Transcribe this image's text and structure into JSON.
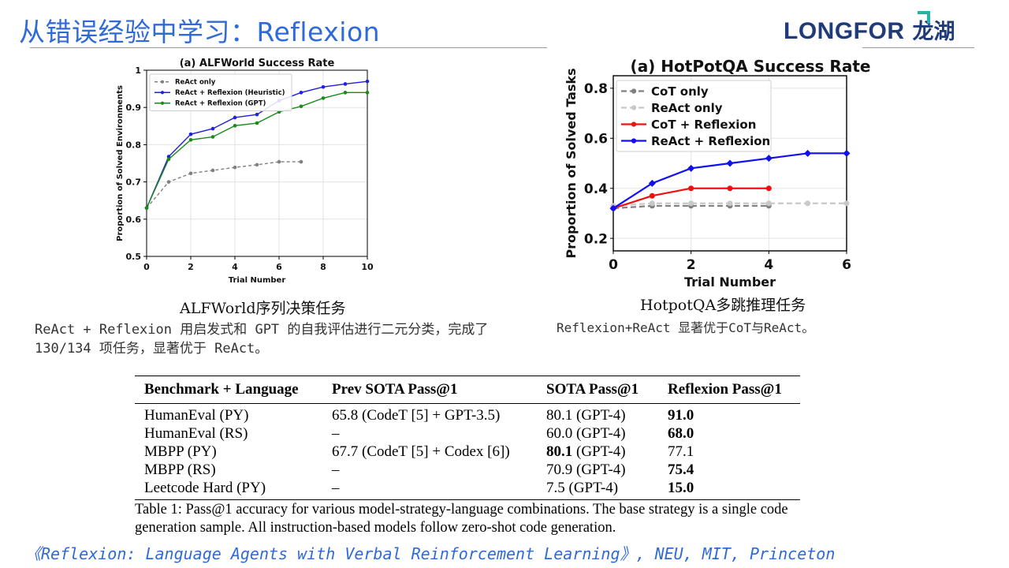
{
  "slide": {
    "title": "从错误经验中学习：Reflexion",
    "logo": {
      "en": "LONGFOR",
      "zh": "龙湖"
    },
    "colors": {
      "title": "#2e6ad8",
      "logo": "#1f3b7a",
      "logo_accent": "#26b3a6"
    }
  },
  "chart_data": [
    {
      "type": "line",
      "title": "(a) ALFWorld Success Rate",
      "xlabel": "Trial Number",
      "ylabel": "Proportion of Solved Environments",
      "xlim": [
        0,
        10
      ],
      "ylim": [
        0.5,
        1.0
      ],
      "xticks": [
        0,
        2,
        4,
        6,
        8,
        10
      ],
      "yticks": [
        0.5,
        0.6,
        0.7,
        0.8,
        0.9,
        1.0
      ],
      "grid": true,
      "legend_position": "top-left",
      "series": [
        {
          "name": "ReAct only",
          "color": "#808080",
          "dashed": true,
          "x": [
            0,
            1,
            2,
            3,
            4,
            5,
            6,
            7
          ],
          "y": [
            0.63,
            0.7,
            0.723,
            0.731,
            0.739,
            0.746,
            0.754,
            0.754
          ]
        },
        {
          "name": "ReAct + Reflexion (Heuristic)",
          "color": "#1f1fe0",
          "dashed": false,
          "x": [
            0,
            1,
            2,
            3,
            4,
            5,
            6,
            7,
            8,
            9,
            10
          ],
          "y": [
            0.63,
            0.768,
            0.828,
            0.843,
            0.873,
            0.881,
            0.918,
            0.94,
            0.955,
            0.963,
            0.97
          ]
        },
        {
          "name": "ReAct + Reflexion (GPT)",
          "color": "#1a8a1a",
          "dashed": false,
          "x": [
            0,
            1,
            2,
            3,
            4,
            5,
            6,
            7,
            8,
            9,
            10
          ],
          "y": [
            0.63,
            0.761,
            0.813,
            0.821,
            0.851,
            0.858,
            0.888,
            0.903,
            0.925,
            0.94,
            0.94
          ]
        }
      ]
    },
    {
      "type": "line",
      "title": "(a) HotPotQA Success Rate",
      "xlabel": "Trial Number",
      "ylabel": "Proportion of Solved Tasks",
      "xlim": [
        0,
        6
      ],
      "ylim": [
        0.15,
        0.85
      ],
      "xticks": [
        0,
        2,
        4,
        6
      ],
      "yticks": [
        0.2,
        0.4,
        0.6,
        0.8
      ],
      "grid": true,
      "legend_position": "top-left",
      "series": [
        {
          "name": "CoT only",
          "color": "#808080",
          "dashed": true,
          "x": [
            0,
            1,
            2,
            3,
            4
          ],
          "y": [
            0.32,
            0.33,
            0.33,
            0.33,
            0.33
          ]
        },
        {
          "name": "ReAct only",
          "color": "#c8c8c8",
          "dashed": true,
          "x": [
            0,
            1,
            2,
            3,
            4,
            5,
            6
          ],
          "y": [
            0.33,
            0.34,
            0.34,
            0.34,
            0.34,
            0.34,
            0.34
          ]
        },
        {
          "name": "CoT + Reflexion",
          "color": "#f01010",
          "dashed": false,
          "x": [
            0,
            1,
            2,
            3,
            4
          ],
          "y": [
            0.32,
            0.37,
            0.4,
            0.4,
            0.4
          ]
        },
        {
          "name": "ReAct + Reflexion",
          "color": "#1010f0",
          "dashed": false,
          "x": [
            0,
            1,
            2,
            3,
            4,
            5,
            6
          ],
          "y": [
            0.32,
            0.42,
            0.48,
            0.5,
            0.52,
            0.54,
            0.54
          ]
        }
      ]
    }
  ],
  "captions": {
    "alf_title": "ALFWorld序列决策任务",
    "alf_desc": "ReAct + Reflexion 用启发式和 GPT 的自我评估进行二元分类，完成了 130/134 项任务，显著优于 ReAct。",
    "hot_title": "HotpotQA多跳推理任务",
    "hot_desc": "Reflexion+ReAct 显著优于CoT与ReAct。"
  },
  "table": {
    "headers": [
      "Benchmark + Language",
      "Prev SOTA Pass@1",
      "SOTA Pass@1",
      "Reflexion Pass@1"
    ],
    "rows": [
      {
        "bench": "HumanEval (PY)",
        "prev": "65.8 (CodeT [5] + GPT-3.5)",
        "sota_num": "80.1",
        "sota_model": " (GPT-4)",
        "sota_bold": false,
        "reflexion": "91.0",
        "reflexion_bold": true
      },
      {
        "bench": "HumanEval (RS)",
        "prev": "–",
        "sota_num": "60.0",
        "sota_model": " (GPT-4)",
        "sota_bold": false,
        "reflexion": "68.0",
        "reflexion_bold": true
      },
      {
        "bench": "MBPP (PY)",
        "prev": "67.7 (CodeT [5] + Codex [6])",
        "sota_num": "80.1",
        "sota_model": " (GPT-4)",
        "sota_bold": true,
        "reflexion": "77.1",
        "reflexion_bold": false
      },
      {
        "bench": "MBPP (RS)",
        "prev": "–",
        "sota_num": "70.9",
        "sota_model": " (GPT-4)",
        "sota_bold": false,
        "reflexion": "75.4",
        "reflexion_bold": true
      },
      {
        "bench": "Leetcode Hard (PY)",
        "prev": "–",
        "sota_num": "7.5",
        "sota_model": " (GPT-4)",
        "sota_bold": false,
        "reflexion": "15.0",
        "reflexion_bold": true
      }
    ],
    "caption": "Table 1: Pass@1 accuracy for various model-strategy-language combinations. The base strategy is a single code generation sample. All instruction-based models follow zero-shot code generation."
  },
  "reference": "《Reflexion: Language Agents with Verbal Reinforcement Learning》, NEU, MIT, Princeton"
}
